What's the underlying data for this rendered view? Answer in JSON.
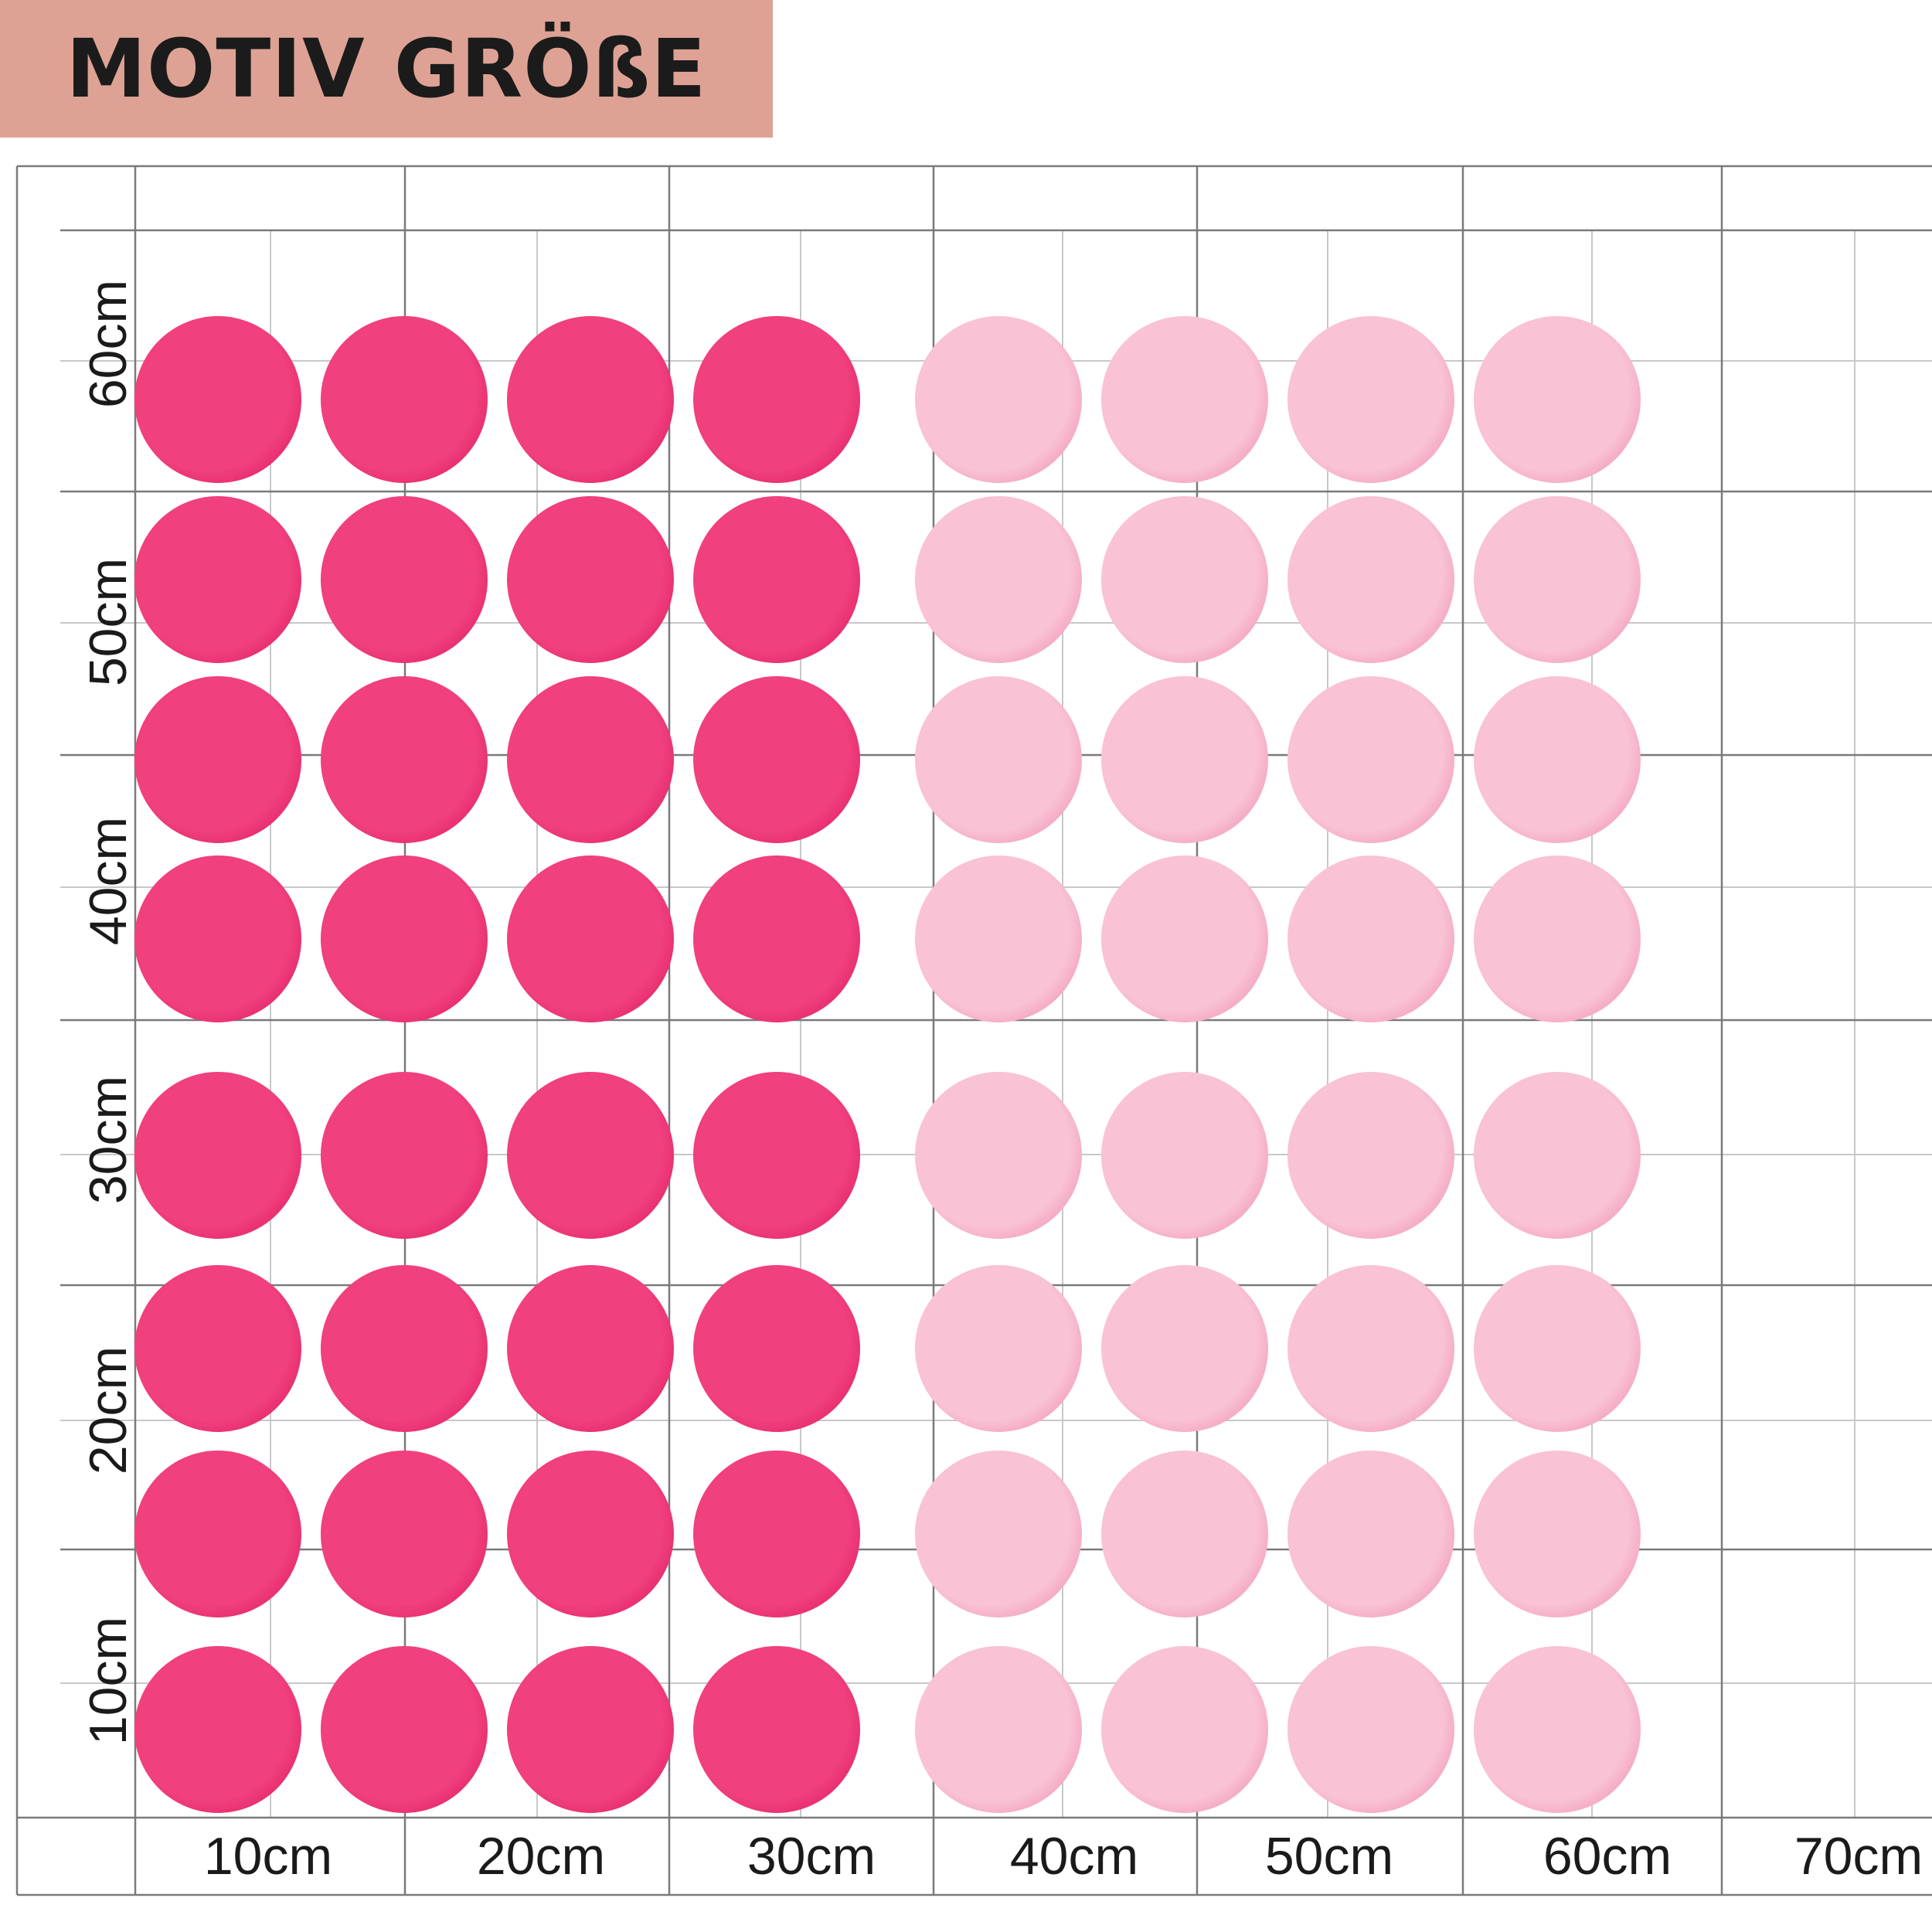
{
  "header": {
    "title": "MOTIV GRÖßE",
    "banner_color": "#dea294"
  },
  "colors": {
    "dark_dot": "#f0407e",
    "dark_dot_edge": "#e62a6c",
    "light_dot": "#f9c2d5",
    "light_dot_edge": "#f3a3bf",
    "grid_major": "#7a7a7a",
    "grid_minor": "#c8c8c8"
  },
  "grid": {
    "x_axis_labels": [
      "10cm",
      "20cm",
      "30cm",
      "40cm",
      "50cm",
      "60cm",
      "70cm"
    ],
    "y_axis_labels": [
      "60cm",
      "50cm",
      "40cm",
      "30cm",
      "20cm",
      "10cm"
    ]
  },
  "dots": {
    "columns": 8,
    "rows": 8,
    "dark_columns": 4,
    "light_columns": 4
  }
}
